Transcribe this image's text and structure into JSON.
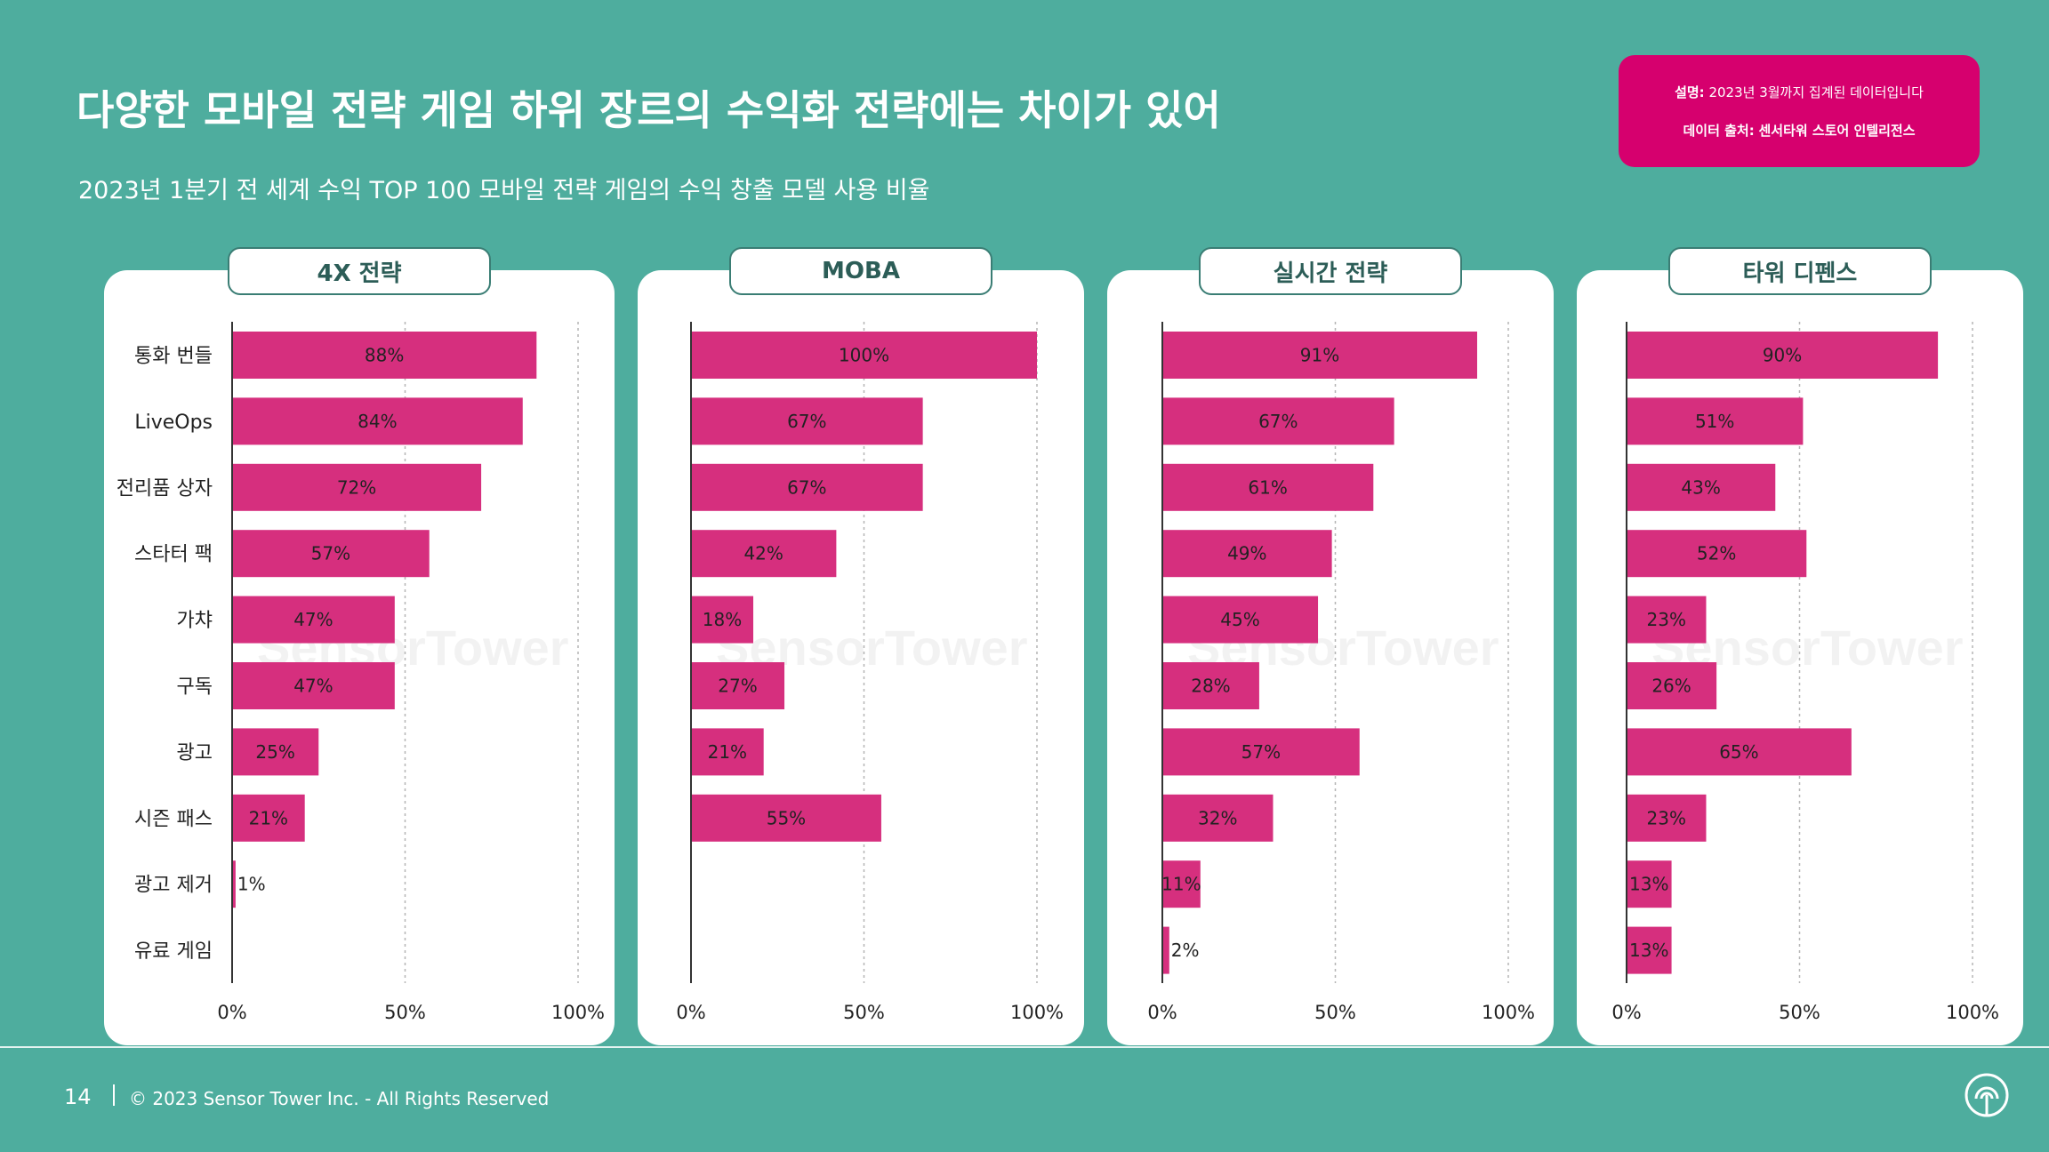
{
  "title": "다양한 모바일 전략 게임 하위 장르의 수익화 전략에는 차이가 있어",
  "subtitle": "2023년 1분기 전 세계 수익 TOP 100 모바일 전략 게임의 수익 창출 모델 사용 비율",
  "note": {
    "desc_label": "설명:",
    "desc_text": "2023년 3월까지 집계된 데이터입니다",
    "source_label": "데이터 출처:",
    "source_text": "센서타워 스토어 인텔리전스"
  },
  "watermark": "SensorTower",
  "footer": {
    "page": "14",
    "copyright": "© 2023 Sensor Tower Inc. - All Rights Reserved"
  },
  "colors": {
    "background": "#4ead9e",
    "bar": "#d62f7e",
    "note": "#d6006e"
  },
  "chart_data": [
    {
      "type": "bar",
      "title": "4X 전략",
      "categories": [
        "통화 번들",
        "LiveOps",
        "전리품 상자",
        "스타터 팩",
        "가챠",
        "구독",
        "광고",
        "시즌 패스",
        "광고 제거",
        "유료 게임"
      ],
      "values": [
        88,
        84,
        72,
        57,
        47,
        47,
        25,
        21,
        1,
        null
      ],
      "labels": [
        "88%",
        "84%",
        "72%",
        "57%",
        "47%",
        "47%",
        "25%",
        "21%",
        "1%",
        ""
      ],
      "xlim": [
        0,
        100
      ],
      "ticks": [
        "0%",
        "50%",
        "100%"
      ]
    },
    {
      "type": "bar",
      "title": "MOBA",
      "values": [
        100,
        67,
        67,
        42,
        18,
        27,
        21,
        55,
        null,
        null
      ],
      "labels": [
        "100%",
        "67%",
        "67%",
        "42%",
        "18%",
        "27%",
        "21%",
        "55%",
        "",
        ""
      ],
      "xlim": [
        0,
        100
      ],
      "ticks": [
        "0%",
        "50%",
        "100%"
      ]
    },
    {
      "type": "bar",
      "title": "실시간 전략",
      "values": [
        91,
        67,
        61,
        49,
        45,
        28,
        57,
        32,
        11,
        2
      ],
      "labels": [
        "91%",
        "67%",
        "61%",
        "49%",
        "45%",
        "28%",
        "57%",
        "32%",
        "11%",
        "2%"
      ],
      "xlim": [
        0,
        100
      ],
      "ticks": [
        "0%",
        "50%",
        "100%"
      ]
    },
    {
      "type": "bar",
      "title": "타워 디펜스",
      "values": [
        90,
        51,
        43,
        52,
        23,
        26,
        65,
        23,
        13,
        13
      ],
      "labels": [
        "90%",
        "51%",
        "43%",
        "52%",
        "23%",
        "26%",
        "65%",
        "23%",
        "13%",
        "13%"
      ],
      "xlim": [
        0,
        100
      ],
      "ticks": [
        "0%",
        "50%",
        "100%"
      ]
    }
  ]
}
